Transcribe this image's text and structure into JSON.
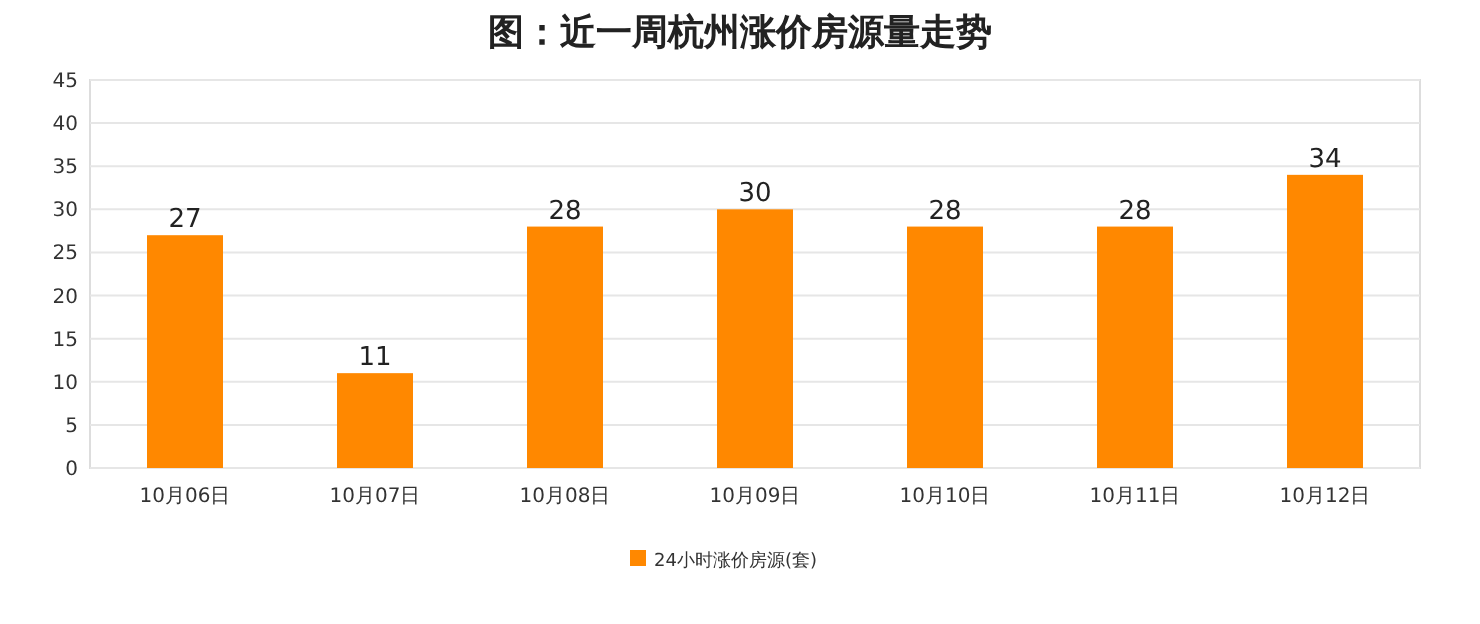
{
  "chart_data": {
    "type": "bar",
    "title": "图：近一周杭州涨价房源量走势",
    "categories": [
      "10月06日",
      "10月07日",
      "10月08日",
      "10月09日",
      "10月10日",
      "10月11日",
      "10月12日"
    ],
    "series": [
      {
        "name": "24小时涨价房源(套)",
        "color": "#ff8800",
        "values": [
          27,
          11,
          28,
          30,
          28,
          28,
          34
        ]
      }
    ],
    "ylim": [
      0,
      45
    ],
    "yticks": [
      0,
      5,
      10,
      15,
      20,
      25,
      30,
      35,
      40,
      45
    ],
    "grid": "y",
    "legend": "bottom",
    "data_labels": true
  }
}
